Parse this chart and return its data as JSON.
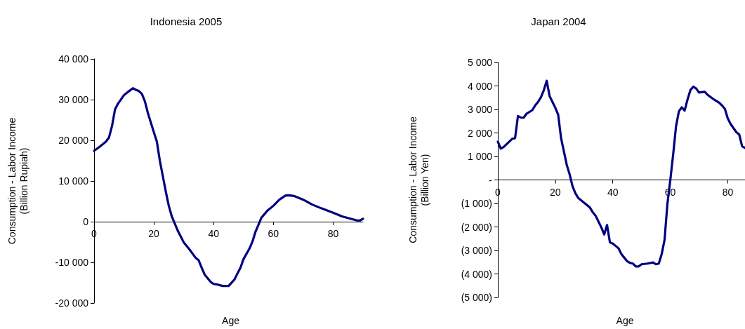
{
  "chart_data": [
    {
      "type": "line",
      "title": "Indonesia 2005",
      "xlabel": "Age",
      "ylabel": "Consumption - Labor Income\n(Billion Rupiah)",
      "xlim": [
        0,
        90
      ],
      "xticks": [
        0,
        20,
        40,
        60,
        80
      ],
      "ylim": [
        -20000,
        40000
      ],
      "yticks": [
        {
          "value": -20000,
          "label": "-20 000"
        },
        {
          "value": -10000,
          "label": "-10 000"
        },
        0,
        {
          "value": 10000,
          "label": "10 000"
        },
        {
          "value": 20000,
          "label": "20 000"
        },
        {
          "value": 30000,
          "label": "30 000"
        },
        {
          "value": 40000,
          "label": "40 000"
        }
      ],
      "grid": false,
      "marker": "none",
      "line_style": "solid",
      "series": [
        {
          "color": "#000080",
          "x": [
            0,
            2,
            4,
            5,
            6,
            7,
            8,
            10,
            11,
            13,
            14,
            15,
            16,
            17,
            18,
            20,
            21,
            22,
            24,
            25,
            26,
            28,
            30,
            32,
            34,
            35,
            36,
            37,
            39,
            40,
            41,
            43,
            45,
            47,
            48,
            49,
            50,
            52,
            53,
            54,
            55,
            56,
            58,
            60,
            62,
            64,
            65,
            67,
            70,
            73,
            76,
            80,
            83,
            86,
            88,
            89,
            90
          ],
          "values": [
            17400,
            18500,
            19700,
            20700,
            23500,
            27600,
            29000,
            31100,
            31700,
            32800,
            32400,
            32100,
            31400,
            29600,
            26700,
            22000,
            19700,
            15000,
            7400,
            3900,
            1300,
            -2200,
            -5100,
            -6900,
            -8900,
            -9500,
            -11300,
            -13000,
            -14800,
            -15300,
            -15400,
            -15800,
            -15800,
            -14200,
            -12700,
            -11300,
            -9200,
            -6600,
            -4900,
            -2500,
            -800,
            1000,
            2700,
            3900,
            5400,
            6400,
            6500,
            6300,
            5400,
            4200,
            3300,
            2200,
            1300,
            700,
            300,
            300,
            700
          ]
        }
      ]
    },
    {
      "type": "line",
      "title": "Japan 2004",
      "xlabel": "Age",
      "ylabel": "Consumption - Labor Income\n(Billion Yen)",
      "xlim": [
        0,
        86
      ],
      "xticks": [
        0,
        20,
        40,
        60,
        80
      ],
      "ylim": [
        -5000,
        5000
      ],
      "yticks": [
        {
          "value": -5000,
          "label": "(5 000)"
        },
        {
          "value": -4000,
          "label": "(4 000)"
        },
        {
          "value": -3000,
          "label": "(3 000)"
        },
        {
          "value": -2000,
          "label": "(2 000)"
        },
        {
          "value": -1000,
          "label": "(1 000)"
        },
        {
          "value": 0,
          "label": "-"
        },
        {
          "value": 1000,
          "label": "1 000"
        },
        {
          "value": 2000,
          "label": "2 000"
        },
        {
          "value": 3000,
          "label": "3 000"
        },
        {
          "value": 4000,
          "label": "4 000"
        },
        {
          "value": 5000,
          "label": "5 000"
        }
      ],
      "grid": false,
      "marker": "none",
      "line_style": "solid",
      "series": [
        {
          "color": "#000080",
          "x": [
            0,
            1,
            2,
            4,
            5,
            6,
            7,
            8,
            9,
            10,
            12,
            13,
            14,
            15,
            16,
            17,
            18,
            19,
            20,
            21,
            22,
            24,
            25,
            26,
            27,
            28,
            30,
            31,
            32,
            33,
            34,
            35,
            36,
            37,
            38,
            39,
            40,
            41,
            42,
            43,
            44,
            45,
            46,
            47,
            48,
            49,
            50,
            52,
            54,
            55,
            56,
            57,
            58,
            59,
            60,
            61,
            62,
            63,
            64,
            65,
            66,
            67,
            68,
            69,
            70,
            72,
            73,
            75,
            77,
            78,
            79,
            80,
            81,
            83,
            84,
            85,
            86
          ],
          "values": [
            1630,
            1330,
            1400,
            1630,
            1750,
            1780,
            2720,
            2650,
            2650,
            2820,
            2970,
            3170,
            3320,
            3520,
            3820,
            4220,
            3570,
            3320,
            3070,
            2770,
            1780,
            630,
            230,
            -270,
            -570,
            -770,
            -970,
            -1070,
            -1170,
            -1370,
            -1520,
            -1770,
            -2020,
            -2320,
            -1920,
            -2660,
            -2710,
            -2810,
            -2910,
            -3160,
            -3310,
            -3460,
            -3530,
            -3560,
            -3680,
            -3680,
            -3590,
            -3560,
            -3510,
            -3590,
            -3560,
            -3160,
            -2560,
            -1020,
            -20,
            1080,
            2280,
            2920,
            3090,
            2950,
            3420,
            3820,
            3970,
            3890,
            3720,
            3750,
            3620,
            3440,
            3290,
            3170,
            3020,
            2620,
            2380,
            2030,
            1930,
            1430,
            1360
          ]
        }
      ]
    }
  ]
}
